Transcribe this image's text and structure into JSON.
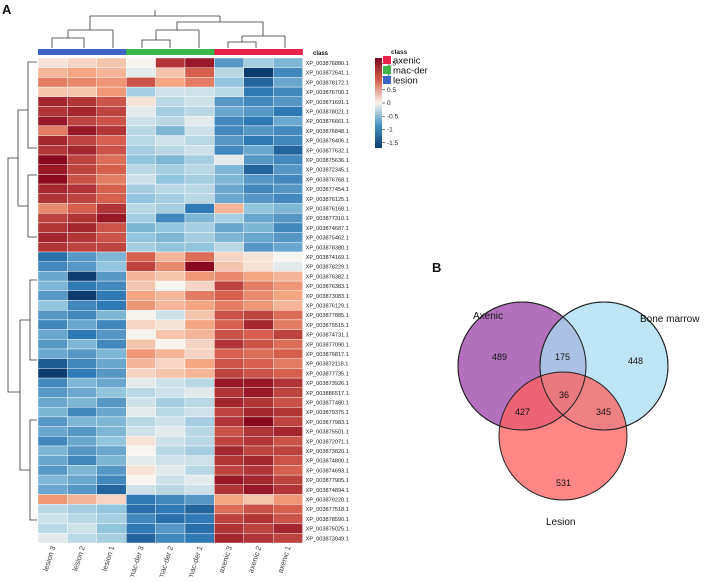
{
  "panel_a": {
    "letter": "A"
  },
  "panel_b": {
    "letter": "B"
  },
  "colors": {
    "axenic": "#e8224a",
    "mac_der": "#3cb54a",
    "lesion": "#3f64c8",
    "high": "#9a0c26",
    "mid": "#f7f3ee",
    "low": "#0d3d6e"
  },
  "chart_data": [
    {
      "type": "heatmap",
      "title": "",
      "columns": [
        "lesion 3",
        "lesion 2",
        "lesion 1",
        "mac-der 3",
        "mac-der 2",
        "mac-der 1",
        "axenic 3",
        "axenic 2",
        "axenic 1"
      ],
      "column_class": [
        "lesion",
        "lesion",
        "lesion",
        "mac-der",
        "mac-der",
        "mac-der",
        "axenic",
        "axenic",
        "axenic"
      ],
      "annotation_label": "class",
      "rows": [
        "XP_003876880.1",
        "XP_003872641.1",
        "XP_003878172.1",
        "XP_003876700.1",
        "XP_003871691.1",
        "XP_003878021.1",
        "XP_003876661.1",
        "XP_003876848.1",
        "XP_003876406.1",
        "XP_003877632.1",
        "XP_003875636.1",
        "XP_003872345.1",
        "XP_003876768.1",
        "XP_003877454.1",
        "XP_003876125.1",
        "XP_003876168.1",
        "XP_003877310.1",
        "XP_003874687.1",
        "XP_003875462.1",
        "XP_003878380.1",
        "XP_003874169.1",
        "XP_003878229.1",
        "XP_003876382.1",
        "XP_003876383.1",
        "XP_003873083.1",
        "XP_003876129.1",
        "XP_003877885.1",
        "XP_003875515.1",
        "XP_003874731.1",
        "XP_003877090.1",
        "XP_003876817.1",
        "XP_003872118.1",
        "XP_003877735.1",
        "XP_003873926.1",
        "XP_003886517.1",
        "XP_003877480.1",
        "XP_003879375.1",
        "XP_003877983.1",
        "XP_003875501.1",
        "XP_003872071.1",
        "XP_003873820.1",
        "XP_003874800.1",
        "XP_003874693.1",
        "XP_003877905.1",
        "XP_003874894.1",
        "XP_003879220.1",
        "XP_003877518.1",
        "XP_003878590.1",
        "XP_003875025.1",
        "XP_003873049.1"
      ],
      "values": [
        [
          0.1,
          0.2,
          0.3,
          0.0,
          1.3,
          1.5,
          -0.8,
          -0.4,
          -0.6
        ],
        [
          0.4,
          0.5,
          0.4,
          -0.1,
          0.3,
          1.0,
          -0.3,
          -1.9,
          -0.9
        ],
        [
          0.8,
          0.7,
          0.6,
          1.1,
          0.5,
          0.8,
          -0.5,
          -1.2,
          -0.7
        ],
        [
          0.3,
          0.3,
          0.6,
          -0.4,
          -0.2,
          -0.2,
          -0.3,
          -1.0,
          -0.9
        ],
        [
          1.4,
          1.3,
          1.1,
          0.1,
          -0.3,
          -0.2,
          -0.8,
          -0.9,
          -0.8
        ],
        [
          1.3,
          1.4,
          1.2,
          -0.1,
          -0.4,
          -0.3,
          -0.7,
          -0.8,
          -1.0
        ],
        [
          1.5,
          1.2,
          1.1,
          -0.2,
          -0.3,
          -0.1,
          -0.9,
          -1.0,
          -0.7
        ],
        [
          0.8,
          1.5,
          1.3,
          -0.3,
          -0.6,
          -0.2,
          -0.9,
          -0.8,
          -0.9
        ],
        [
          1.4,
          1.2,
          1.0,
          -0.3,
          -0.2,
          -0.3,
          -0.8,
          -1.0,
          -0.9
        ],
        [
          1.3,
          1.4,
          1.1,
          -0.4,
          -0.3,
          -0.2,
          -0.9,
          -0.7,
          -1.2
        ],
        [
          1.6,
          1.2,
          0.9,
          -0.5,
          -0.6,
          -0.4,
          -0.1,
          -0.8,
          -0.9
        ],
        [
          1.5,
          1.2,
          1.0,
          -0.3,
          -0.4,
          -0.3,
          -0.6,
          -1.2,
          -0.8
        ],
        [
          1.6,
          1.1,
          0.8,
          -0.2,
          -0.5,
          -0.4,
          -0.6,
          -0.8,
          -0.9
        ],
        [
          1.4,
          1.3,
          1.0,
          -0.4,
          -0.3,
          -0.3,
          -0.7,
          -0.9,
          -0.8
        ],
        [
          1.3,
          1.2,
          1.0,
          -0.5,
          -0.4,
          -0.3,
          -0.7,
          -0.8,
          -0.9
        ],
        [
          0.7,
          1.0,
          1.3,
          -0.3,
          -0.4,
          -1.0,
          0.4,
          -0.5,
          -0.6
        ],
        [
          1.2,
          1.3,
          1.5,
          -0.4,
          -0.9,
          -0.6,
          -0.4,
          -0.7,
          -0.8
        ],
        [
          1.3,
          1.4,
          1.1,
          -0.6,
          -0.5,
          -0.4,
          -0.7,
          -0.6,
          -0.9
        ],
        [
          1.4,
          1.3,
          1.1,
          -0.5,
          -0.6,
          -0.4,
          -0.6,
          -0.7,
          -0.8
        ],
        [
          1.3,
          1.2,
          1.2,
          -0.4,
          -0.5,
          -0.5,
          -0.3,
          -0.8,
          -0.7
        ],
        [
          -1.1,
          -0.8,
          -0.6,
          1.0,
          0.4,
          0.9,
          0.2,
          0.1,
          0.0
        ],
        [
          -0.9,
          -0.8,
          -0.5,
          1.2,
          0.7,
          1.6,
          0.3,
          0.1,
          -0.1
        ],
        [
          -0.7,
          -1.6,
          -0.8,
          0.4,
          0.3,
          0.6,
          0.7,
          0.5,
          0.4
        ],
        [
          -0.6,
          -1.0,
          -0.9,
          0.3,
          0.0,
          0.2,
          1.2,
          0.8,
          0.6
        ],
        [
          -0.8,
          -1.6,
          -1.0,
          0.5,
          0.4,
          0.8,
          1.0,
          0.7,
          0.5
        ],
        [
          -0.5,
          -0.9,
          -1.0,
          0.6,
          0.4,
          0.5,
          0.8,
          0.6,
          0.4
        ],
        [
          -0.8,
          -0.9,
          -0.6,
          0.0,
          -0.2,
          0.3,
          1.1,
          1.2,
          0.9
        ],
        [
          -0.9,
          -0.7,
          -0.9,
          0.2,
          0.1,
          0.5,
          1.0,
          1.4,
          0.8
        ],
        [
          -0.7,
          -1.0,
          -0.8,
          0.0,
          0.3,
          0.4,
          1.1,
          1.0,
          1.2
        ],
        [
          -0.8,
          -0.6,
          -0.9,
          0.3,
          0.0,
          0.2,
          1.3,
          1.1,
          0.9
        ],
        [
          -0.7,
          -0.8,
          -0.6,
          0.6,
          0.4,
          0.2,
          1.0,
          0.9,
          1.0
        ],
        [
          -1.3,
          -0.9,
          -0.7,
          0.4,
          0.2,
          0.5,
          1.1,
          1.0,
          0.8
        ],
        [
          -1.6,
          -1.0,
          -0.8,
          0.2,
          0.3,
          0.4,
          1.2,
          1.1,
          1.0
        ],
        [
          -0.9,
          -0.6,
          -0.7,
          -0.1,
          -0.2,
          -0.3,
          1.5,
          1.5,
          1.3
        ],
        [
          -0.8,
          -0.7,
          -0.5,
          -0.3,
          -0.2,
          -0.1,
          1.3,
          1.5,
          1.2
        ],
        [
          -0.7,
          -0.6,
          -0.8,
          -0.2,
          -0.4,
          -0.3,
          1.4,
          1.3,
          1.1
        ],
        [
          -0.6,
          -0.9,
          -0.7,
          -0.1,
          -0.3,
          -0.2,
          1.2,
          1.4,
          1.3
        ],
        [
          -0.8,
          -0.6,
          -0.6,
          -0.3,
          -0.2,
          -0.4,
          1.3,
          1.6,
          1.2
        ],
        [
          -0.7,
          -0.8,
          -0.6,
          -0.2,
          -0.1,
          -0.3,
          1.1,
          1.3,
          1.4
        ],
        [
          -0.9,
          -0.7,
          -0.5,
          0.1,
          -0.2,
          -0.3,
          1.2,
          1.3,
          1.1
        ],
        [
          -0.6,
          -0.8,
          -0.7,
          0.0,
          -0.3,
          -0.4,
          1.4,
          1.2,
          1.2
        ],
        [
          -0.7,
          -0.9,
          -0.6,
          -0.1,
          -0.2,
          -0.2,
          1.3,
          1.4,
          1.1
        ],
        [
          -0.8,
          -0.6,
          -0.8,
          0.1,
          -0.1,
          -0.3,
          1.2,
          1.3,
          1.0
        ],
        [
          -0.6,
          -0.7,
          -0.9,
          0.0,
          -0.2,
          -0.1,
          1.5,
          1.4,
          1.2
        ],
        [
          -0.7,
          -0.8,
          -1.2,
          -0.2,
          -0.3,
          -0.2,
          1.3,
          1.5,
          1.3
        ],
        [
          0.6,
          0.4,
          0.2,
          -1.0,
          -0.9,
          -0.8,
          0.5,
          0.3,
          0.6
        ],
        [
          -0.3,
          -0.4,
          -0.5,
          -1.1,
          -1.0,
          -1.2,
          0.9,
          1.1,
          1.0
        ],
        [
          -0.2,
          -0.3,
          -0.4,
          -0.9,
          -1.1,
          -1.0,
          1.2,
          1.3,
          1.1
        ],
        [
          -0.3,
          -0.2,
          -0.5,
          -1.0,
          -0.8,
          -1.1,
          1.3,
          1.2,
          1.4
        ],
        [
          -0.1,
          -0.3,
          -0.4,
          -1.2,
          -0.9,
          -1.0,
          1.4,
          1.3,
          1.2
        ]
      ],
      "colorbar": {
        "ticks": [
          1.5,
          1,
          0.5,
          0,
          -0.5,
          -1,
          -1.5
        ]
      },
      "class_legend": {
        "title": "class",
        "items": [
          "axenic",
          "mac-der",
          "lesion"
        ]
      }
    },
    {
      "type": "venn",
      "sets": [
        "Axenic",
        "Bone marrow",
        "Lesion"
      ],
      "regions": {
        "axenic_only": 489,
        "bone_marrow_only": 448,
        "lesion_only": 531,
        "axenic_bone_marrow": 175,
        "axenic_lesion": 427,
        "bone_marrow_lesion": 345,
        "all_three": 36
      },
      "colors": [
        "#a85cb4",
        "#a8dcf2",
        "#ff5f5f"
      ]
    }
  ]
}
